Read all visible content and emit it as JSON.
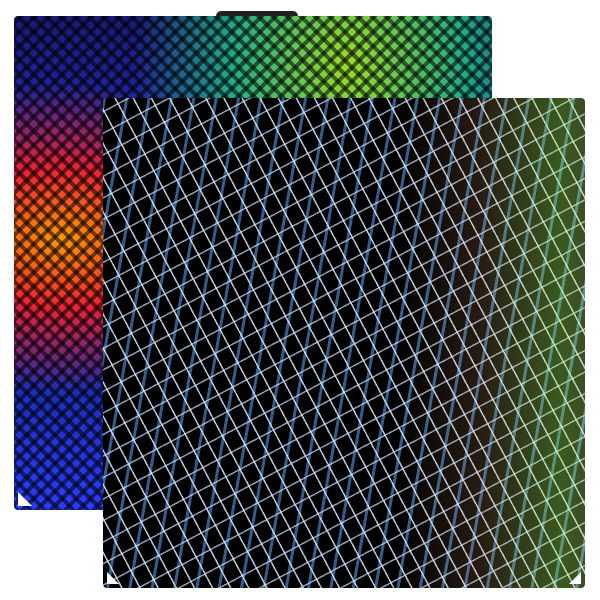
{
  "product": {
    "back_plate": {
      "finish": "holographic-rainbow",
      "colors": [
        "#2233cc",
        "#ff9a00",
        "#9bdc2a"
      ]
    },
    "front_plate": {
      "finish": "holographic-black-lattice",
      "colors": [
        "#000000",
        "#c8e1ff",
        "#5aaaff"
      ]
    }
  }
}
